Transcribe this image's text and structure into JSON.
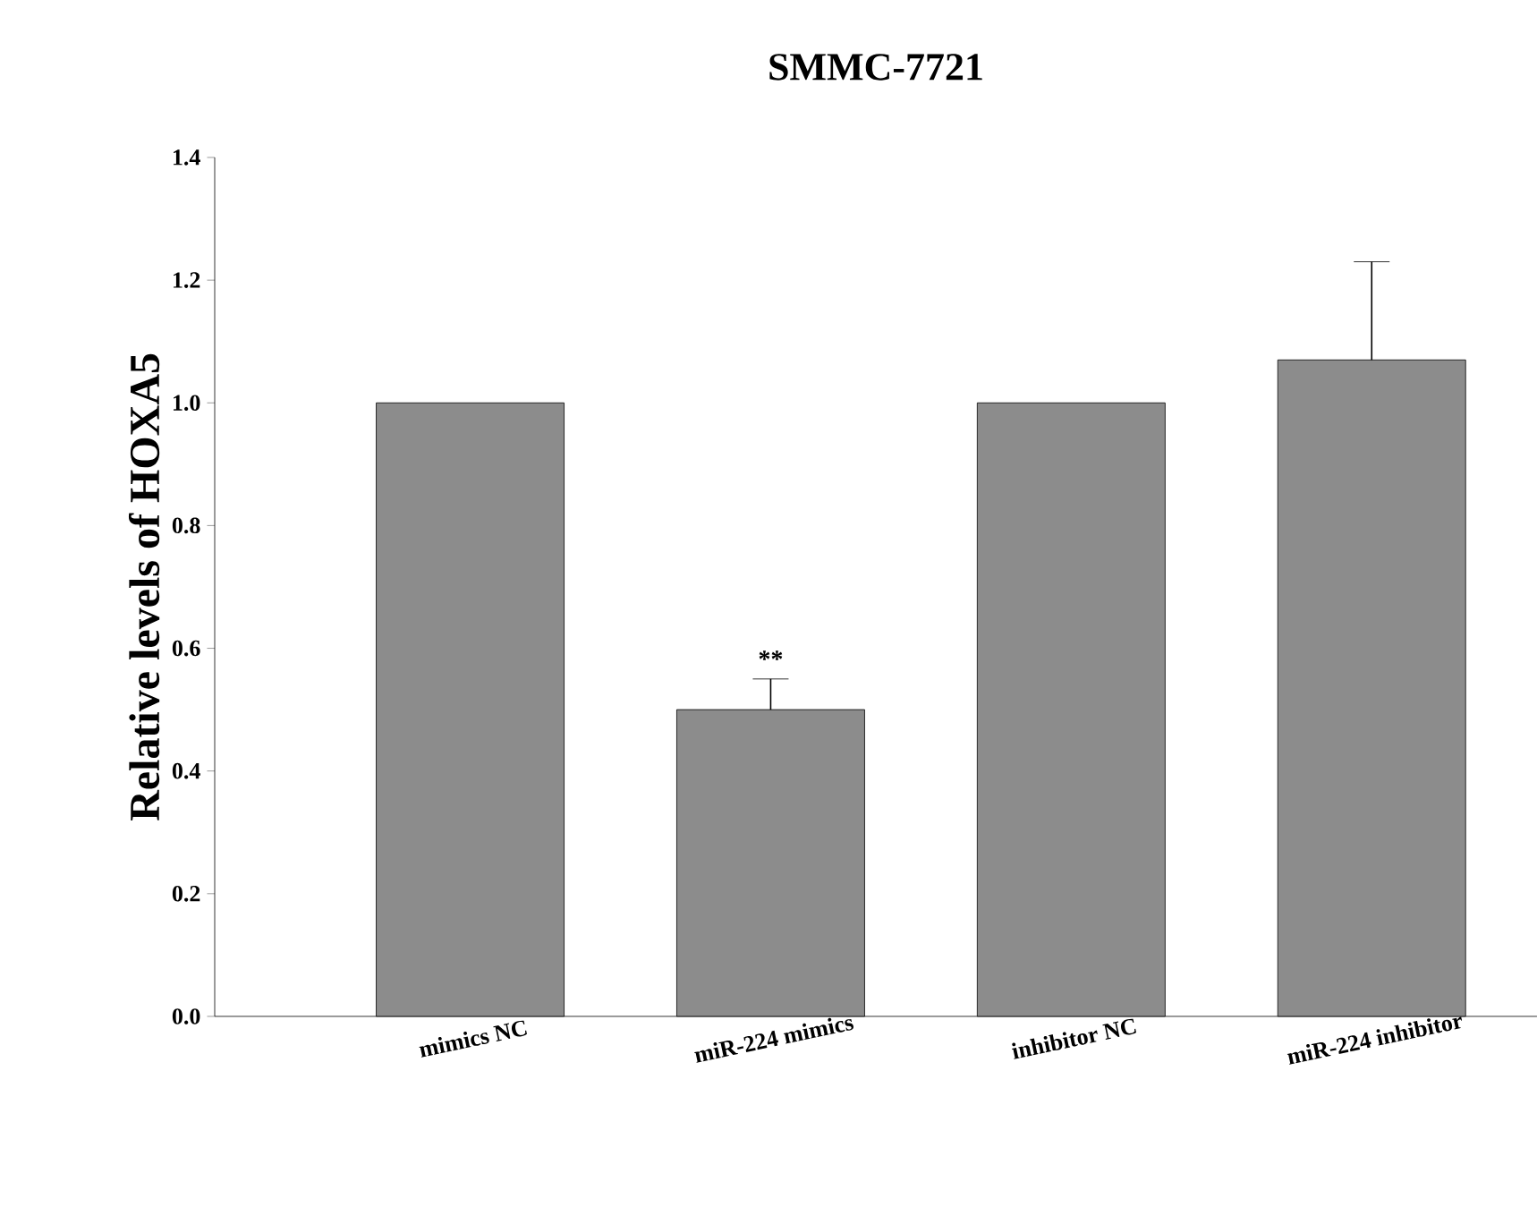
{
  "chart_data": {
    "type": "bar",
    "title": "SMMC-7721",
    "ylabel": "Relative levels of HOXA5",
    "categories": [
      "mimics NC",
      "miR-224 mimics",
      "inhibitor NC",
      "miR-224 inhibitor"
    ],
    "values": [
      1.0,
      0.5,
      1.0,
      1.07
    ],
    "errors": [
      null,
      0.05,
      null,
      0.16
    ],
    "color": "#8c8c8c",
    "ylim": [
      0,
      1.4
    ],
    "yticks": [
      {
        "value": 0,
        "label": "0.0"
      },
      {
        "value": 0.2,
        "label": "0.2"
      },
      {
        "value": 0.4,
        "label": "0.4"
      },
      {
        "value": 0.6,
        "label": "0.6"
      },
      {
        "value": 0.8,
        "label": "0.8"
      },
      {
        "value": 1.0,
        "label": "1.0"
      },
      {
        "value": 1.2,
        "label": "1.2"
      },
      {
        "value": 1.4,
        "label": "1.4"
      }
    ],
    "annotations": [
      "**"
    ]
  }
}
